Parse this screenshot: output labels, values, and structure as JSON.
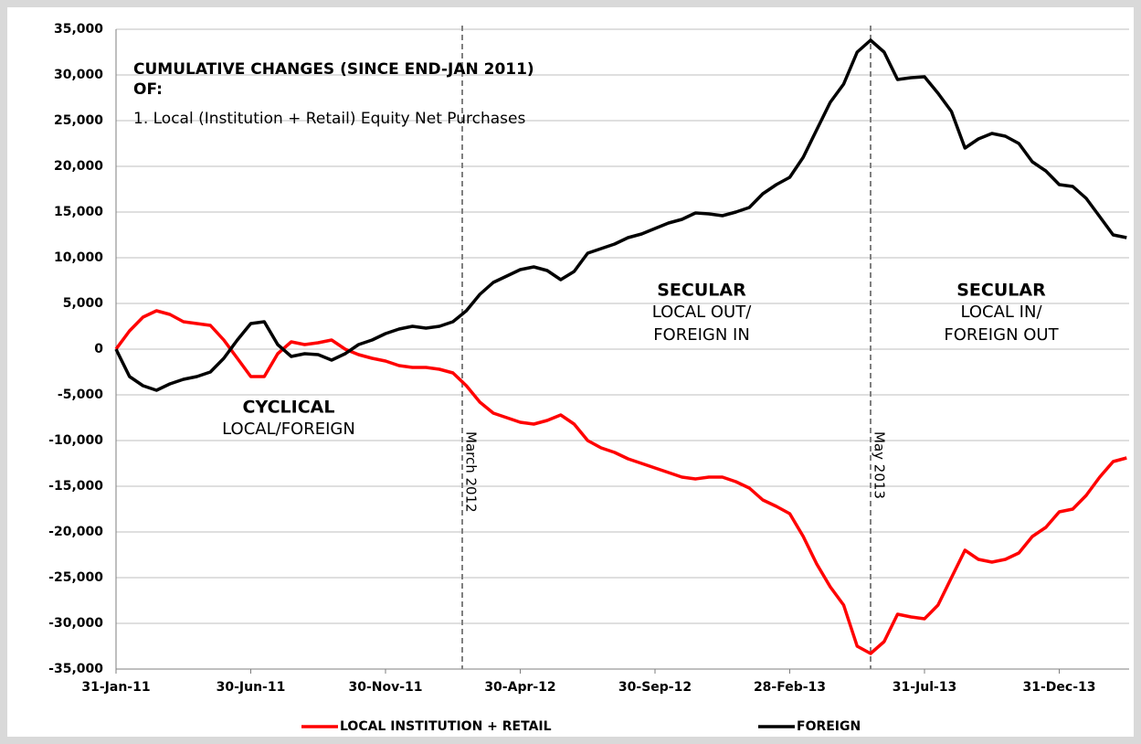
{
  "chart_data": {
    "type": "line",
    "annotations": {
      "title_lines": [
        "CUMULATIVE CHANGES (SINCE END-JAN 2011)",
        "OF:",
        "1. Local (Institution + Retail) Equity Net Purchases"
      ],
      "regions": [
        {
          "heading": "CYCLICAL",
          "lines": [
            "LOCAL/FOREIGN"
          ]
        },
        {
          "heading": "SECULAR",
          "lines": [
            "LOCAL OUT/",
            "FOREIGN IN"
          ]
        },
        {
          "heading": "SECULAR",
          "lines": [
            "LOCAL IN/",
            "FOREIGN OUT"
          ]
        }
      ],
      "markers": [
        "March 2012",
        "May 2013"
      ]
    },
    "categories": [
      "31-Jan-11",
      null,
      null,
      null,
      null,
      null,
      null,
      null,
      null,
      null,
      "30-Jun-11",
      null,
      null,
      null,
      null,
      null,
      null,
      null,
      null,
      null,
      "30-Nov-11",
      null,
      null,
      null,
      null,
      null,
      null,
      null,
      null,
      null,
      "30-Apr-12",
      null,
      null,
      null,
      null,
      null,
      null,
      null,
      null,
      null,
      "30-Sep-12",
      null,
      null,
      null,
      null,
      null,
      null,
      null,
      null,
      null,
      "28-Feb-13",
      null,
      null,
      null,
      null,
      null,
      null,
      null,
      null,
      null,
      "31-Jul-13",
      null,
      null,
      null,
      null,
      null,
      null,
      null,
      null,
      null,
      "31-Dec-13",
      null,
      null,
      null,
      null,
      null
    ],
    "series": [
      {
        "name": "LOCAL INSTITUTION + RETAIL",
        "color": "#ff0000",
        "values": [
          0,
          2000,
          3500,
          4200,
          3800,
          3000,
          2800,
          2600,
          1000,
          -1000,
          -3000,
          -3000,
          -500,
          800,
          500,
          700,
          1000,
          0,
          -600,
          -1000,
          -1300,
          -1800,
          -2000,
          -2000,
          -2200,
          -2600,
          -4000,
          -5800,
          -7000,
          -7500,
          -8000,
          -8200,
          -7800,
          -7200,
          -8200,
          -10000,
          -10800,
          -11300,
          -12000,
          -12500,
          -13000,
          -13500,
          -14000,
          -14200,
          -14000,
          -14000,
          -14500,
          -15200,
          -16500,
          -17200,
          -18000,
          -20500,
          -23500,
          -26000,
          -28000,
          -32500,
          -33300,
          -32000,
          -29000,
          -29300,
          -29500,
          -28000,
          -25000,
          -22000,
          -23000,
          -23300,
          -23000,
          -22300,
          -20500,
          -19500,
          -17800,
          -17500,
          -16000,
          -14000,
          -12300,
          -11900
        ]
      },
      {
        "name": "FOREIGN",
        "color": "#000000",
        "values": [
          0,
          -3000,
          -4000,
          -4500,
          -3800,
          -3300,
          -3000,
          -2500,
          -1000,
          1000,
          2800,
          3000,
          500,
          -800,
          -500,
          -600,
          -1200,
          -500,
          500,
          1000,
          1700,
          2200,
          2500,
          2300,
          2500,
          3000,
          4200,
          6000,
          7300,
          8000,
          8700,
          9000,
          8600,
          7600,
          8500,
          10500,
          11000,
          11500,
          12200,
          12600,
          13200,
          13800,
          14200,
          14900,
          14800,
          14600,
          15000,
          15500,
          17000,
          18000,
          18800,
          21000,
          24000,
          27000,
          29000,
          32500,
          33800,
          32500,
          29500,
          29700,
          29800,
          28000,
          26000,
          22000,
          23000,
          23600,
          23300,
          22500,
          20500,
          19500,
          18000,
          17800,
          16500,
          14500,
          12500,
          12200
        ]
      }
    ],
    "ylim": [
      -35000,
      35000
    ],
    "yticks": [
      {
        "value": -35000,
        "label": "-35,000"
      },
      {
        "value": -30000,
        "label": "-30,000"
      },
      {
        "value": -25000,
        "label": "-25,000"
      },
      {
        "value": -20000,
        "label": "-20,000"
      },
      {
        "value": -15000,
        "label": "-15,000"
      },
      {
        "value": -10000,
        "label": "-10,000"
      },
      {
        "value": -5000,
        "label": "-5,000"
      },
      0,
      {
        "value": 5000,
        "label": "5,000"
      },
      {
        "value": 10000,
        "label": "10,000"
      },
      {
        "value": 15000,
        "label": "15,000"
      },
      {
        "value": 20000,
        "label": "20,000"
      },
      {
        "value": 25000,
        "label": "25,000"
      },
      {
        "value": 30000,
        "label": "30,000"
      },
      {
        "value": 35000,
        "label": "35,000"
      }
    ],
    "grid": true,
    "legend": "bottom"
  }
}
